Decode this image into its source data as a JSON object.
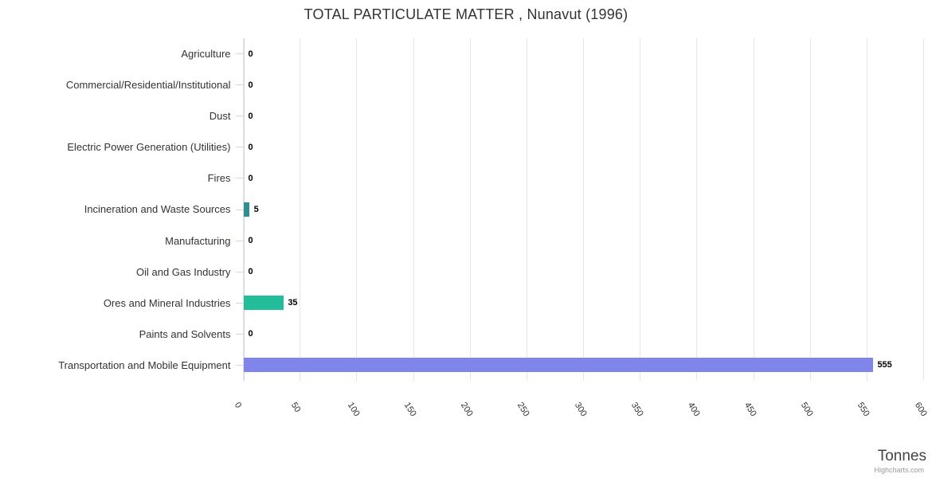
{
  "chart_data": {
    "type": "bar",
    "orientation": "horizontal",
    "title": "TOTAL PARTICULATE MATTER , Nunavut (1996)",
    "categories": [
      "Agriculture",
      "Commercial/Residential/Institutional",
      "Dust",
      "Electric Power Generation (Utilities)",
      "Fires",
      "Incineration and Waste Sources",
      "Manufacturing",
      "Oil and Gas Industry",
      "Ores and Mineral Industries",
      "Paints and Solvents",
      "Transportation and Mobile Equipment"
    ],
    "values": [
      0,
      0,
      0,
      0,
      0,
      5,
      0,
      0,
      35,
      0,
      555
    ],
    "point_colors": [
      null,
      null,
      null,
      null,
      null,
      "#2b908f",
      null,
      null,
      "#24bd9a",
      null,
      "#8085e9"
    ],
    "data_labels": [
      "0",
      "0",
      "0",
      "0",
      "0",
      "5",
      "0",
      "0",
      "35",
      "0",
      "555"
    ],
    "xlabel": "Tonnes",
    "ylabel": "",
    "xlim": [
      0,
      600
    ],
    "xticks": [
      0,
      50,
      100,
      150,
      200,
      250,
      300,
      350,
      400,
      450,
      500,
      550,
      600
    ],
    "grid": true,
    "legend_position": "none",
    "credit": "Highcharts.com"
  },
  "colors": {
    "axis_line": "#ccd6eb",
    "gridline": "#e6e6e6",
    "title_text": "#333333",
    "category_label_text": "#333333",
    "data_label_text": "#000000",
    "axis_title_text": "#444444",
    "credit_text": "#999999",
    "background": "#ffffff"
  }
}
